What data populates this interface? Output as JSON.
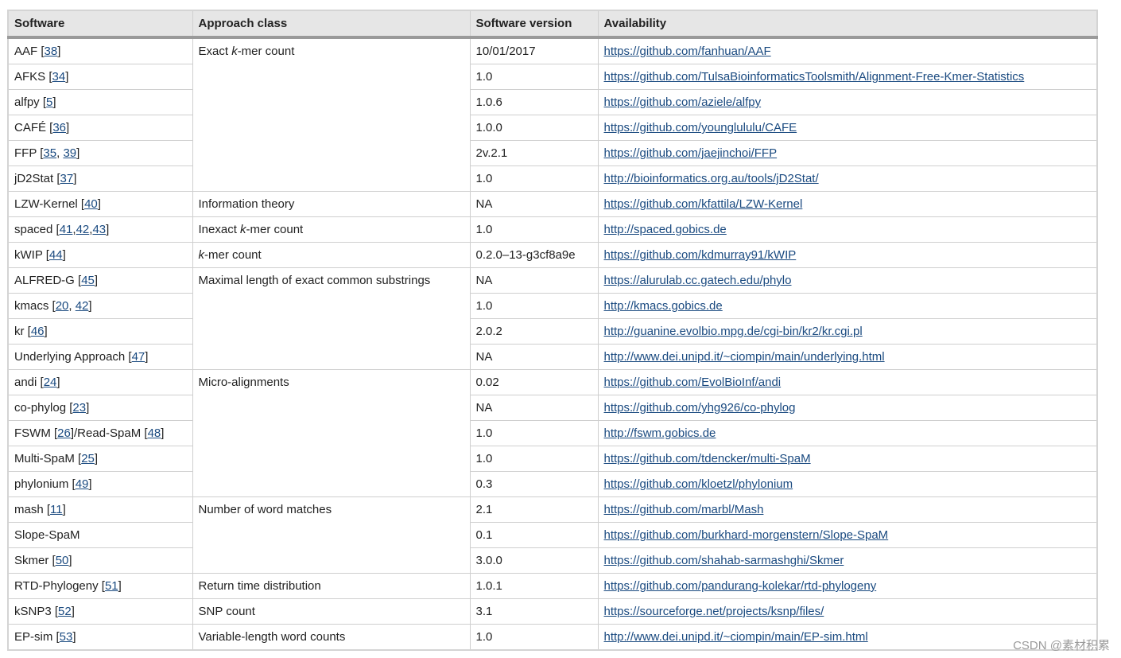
{
  "table": {
    "headers": [
      "Software",
      "Approach class",
      "Software version",
      "Availability"
    ],
    "groups": [
      {
        "approach": [
          "Exact ",
          {
            "em": "k"
          },
          "-mer count"
        ],
        "rows": [
          {
            "software": [
              "AAF [",
              {
                "ref": "38"
              },
              "]"
            ],
            "version": "10/01/2017",
            "url": "https://github.com/fanhuan/AAF"
          },
          {
            "software": [
              "AFKS [",
              {
                "ref": "34"
              },
              "]"
            ],
            "version": "1.0",
            "url": "https://github.com/TulsaBioinformaticsToolsmith/Alignment-Free-Kmer-Statistics"
          },
          {
            "software": [
              "alfpy [",
              {
                "ref": "5"
              },
              "]"
            ],
            "version": "1.0.6",
            "url": "https://github.com/aziele/alfpy"
          },
          {
            "software": [
              "CAFÉ [",
              {
                "ref": "36"
              },
              "]"
            ],
            "version": "1.0.0",
            "url": "https://github.com/younglululu/CAFE"
          },
          {
            "software": [
              "FFP [",
              {
                "ref": "35"
              },
              ", ",
              {
                "ref": "39"
              },
              "]"
            ],
            "version": "2v.2.1",
            "url": "https://github.com/jaejinchoi/FFP"
          },
          {
            "software": [
              "jD2Stat [",
              {
                "ref": "37"
              },
              "]"
            ],
            "version": "1.0",
            "url": "http://bioinformatics.org.au/tools/jD2Stat/"
          }
        ]
      },
      {
        "approach": [
          "Information theory"
        ],
        "rows": [
          {
            "software": [
              "LZW-Kernel [",
              {
                "ref": "40"
              },
              "]"
            ],
            "version": "NA",
            "url": "https://github.com/kfattila/LZW-Kernel"
          }
        ]
      },
      {
        "approach": [
          "Inexact ",
          {
            "em": "k"
          },
          "-mer count"
        ],
        "rows": [
          {
            "software": [
              "spaced [",
              {
                "ref": "41"
              },
              ",",
              {
                "ref": "42"
              },
              ",",
              {
                "ref": "43"
              },
              "]"
            ],
            "version": "1.0",
            "url": "http://spaced.gobics.de"
          }
        ]
      },
      {
        "approach": [
          {
            "em": "k"
          },
          "-mer count"
        ],
        "rows": [
          {
            "software": [
              "kWIP [",
              {
                "ref": "44"
              },
              "]"
            ],
            "version": "0.2.0–13-g3cf8a9e",
            "url": "https://github.com/kdmurray91/kWIP"
          }
        ]
      },
      {
        "approach": [
          "Maximal length of exact common substrings"
        ],
        "rows": [
          {
            "software": [
              "ALFRED-G [",
              {
                "ref": "45"
              },
              "]"
            ],
            "version": "NA",
            "url": "https://alurulab.cc.gatech.edu/phylo"
          },
          {
            "software": [
              "kmacs [",
              {
                "ref": "20"
              },
              ", ",
              {
                "ref": "42"
              },
              "]"
            ],
            "version": "1.0",
            "url": "http://kmacs.gobics.de"
          },
          {
            "software": [
              "kr [",
              {
                "ref": "46"
              },
              "]"
            ],
            "version": "2.0.2",
            "url": "http://guanine.evolbio.mpg.de/cgi-bin/kr2/kr.cgi.pl"
          },
          {
            "software": [
              "Underlying Approach [",
              {
                "ref": "47"
              },
              "]"
            ],
            "version": "NA",
            "url": "http://www.dei.unipd.it/~ciompin/main/underlying.html"
          }
        ]
      },
      {
        "approach": [
          "Micro-alignments"
        ],
        "rows": [
          {
            "software": [
              "andi [",
              {
                "ref": "24"
              },
              "]"
            ],
            "version": "0.02",
            "url": "https://github.com/EvolBioInf/andi"
          },
          {
            "software": [
              "co-phylog [",
              {
                "ref": "23"
              },
              "]"
            ],
            "version": "NA",
            "url": "https://github.com/yhg926/co-phylog"
          },
          {
            "software": [
              "FSWM [",
              {
                "ref": "26"
              },
              "]/Read-SpaM [",
              {
                "ref": "48"
              },
              "]"
            ],
            "version": "1.0",
            "url": "http://fswm.gobics.de"
          },
          {
            "software": [
              "Multi-SpaM [",
              {
                "ref": "25"
              },
              "]"
            ],
            "version": "1.0",
            "url": "https://github.com/tdencker/multi-SpaM"
          },
          {
            "software": [
              "phylonium [",
              {
                "ref": "49"
              },
              "]"
            ],
            "version": "0.3",
            "url": "https://github.com/kloetzl/phylonium"
          }
        ]
      },
      {
        "approach": [
          "Number of word matches"
        ],
        "rows": [
          {
            "software": [
              "mash [",
              {
                "ref": "11"
              },
              "]"
            ],
            "version": "2.1",
            "url": "https://github.com/marbl/Mash"
          },
          {
            "software": [
              "Slope-SpaM"
            ],
            "version": "0.1",
            "url": "https://github.com/burkhard-morgenstern/Slope-SpaM"
          },
          {
            "software": [
              "Skmer [",
              {
                "ref": "50"
              },
              "]"
            ],
            "version": "3.0.0",
            "url": "https://github.com/shahab-sarmashghi/Skmer"
          }
        ]
      },
      {
        "approach": [
          "Return time distribution"
        ],
        "rows": [
          {
            "software": [
              "RTD-Phylogeny [",
              {
                "ref": "51"
              },
              "]"
            ],
            "version": "1.0.1",
            "url": "https://github.com/pandurang-kolekar/rtd-phylogeny"
          }
        ]
      },
      {
        "approach": [
          "SNP count"
        ],
        "rows": [
          {
            "software": [
              "kSNP3 [",
              {
                "ref": "52"
              },
              "]"
            ],
            "version": "3.1",
            "url": "https://sourceforge.net/projects/ksnp/files/"
          }
        ]
      },
      {
        "approach": [
          "Variable-length word counts"
        ],
        "rows": [
          {
            "software": [
              "EP-sim [",
              {
                "ref": "53"
              },
              "]"
            ],
            "version": "1.0",
            "url": "http://www.dei.unipd.it/~ciompin/main/EP-sim.html"
          }
        ]
      }
    ]
  },
  "watermark": "CSDN @素材积累"
}
